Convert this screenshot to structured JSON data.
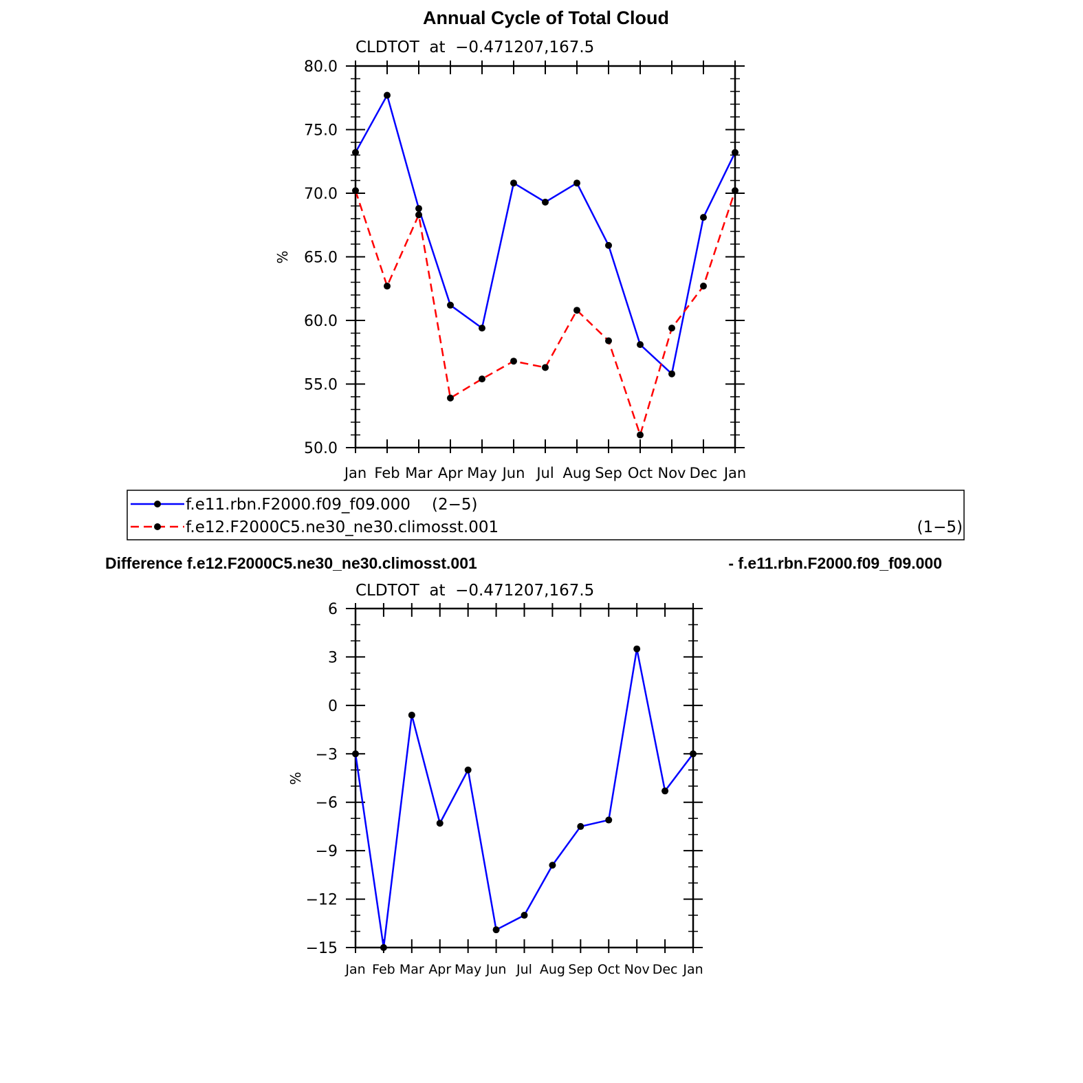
{
  "chart_data": [
    {
      "type": "line",
      "title": "Annual Cycle of Total Cloud",
      "subtitle": "CLDTOT  at  −0.471207,167.5",
      "xlabel": "",
      "ylabel": "%",
      "categories": [
        "Jan",
        "Feb",
        "Mar",
        "Apr",
        "May",
        "Jun",
        "Jul",
        "Aug",
        "Sep",
        "Oct",
        "Nov",
        "Dec",
        "Jan"
      ],
      "ylim": [
        50,
        80
      ],
      "yticks": [
        50,
        55,
        60,
        65,
        70,
        75,
        80
      ],
      "ytick_labels": [
        "50.0",
        "55.0",
        "60.0",
        "65.0",
        "70.0",
        "75.0",
        "80.0"
      ],
      "grid": false,
      "legend_position": "below",
      "series": [
        {
          "name": "f.e11.rbn.F2000.f09_f09.000",
          "legend_note": "(2−5)",
          "color": "#0000ff",
          "dash": "solid",
          "values": [
            73.2,
            77.7,
            68.8,
            61.2,
            59.4,
            70.8,
            69.3,
            70.8,
            65.9,
            58.1,
            55.8,
            68.1,
            73.2
          ]
        },
        {
          "name": "f.e12.F2000C5.ne30_ne30.climosst.001",
          "legend_note": "(1−5)",
          "color": "#ff0000",
          "dash": "dashed",
          "values": [
            70.2,
            62.7,
            68.3,
            53.9,
            55.4,
            56.8,
            56.3,
            60.8,
            58.4,
            51.0,
            59.4,
            62.7,
            70.2
          ]
        }
      ]
    },
    {
      "type": "line",
      "title": "Difference f.e12.F2000C5.ne30_ne30.climosst.001",
      "title_right": "- f.e11.rbn.F2000.f09_f09.000",
      "subtitle": "CLDTOT  at  −0.471207,167.5",
      "xlabel": "",
      "ylabel": "%",
      "categories": [
        "Jan",
        "Feb",
        "Mar",
        "Apr",
        "May",
        "Jun",
        "Jul",
        "Aug",
        "Sep",
        "Oct",
        "Nov",
        "Dec",
        "Jan"
      ],
      "ylim": [
        -15,
        6
      ],
      "yticks": [
        -15,
        -12,
        -9,
        -6,
        -3,
        0,
        3,
        6
      ],
      "ytick_labels": [
        "−15",
        "−12",
        "−9",
        "−6",
        "−3",
        "0",
        "3",
        "6"
      ],
      "grid": false,
      "series": [
        {
          "color": "#0000ff",
          "dash": "solid",
          "values": [
            -3.0,
            -15.0,
            -0.6,
            -7.3,
            -4.0,
            -13.9,
            -13.0,
            -9.9,
            -7.5,
            -7.1,
            3.5,
            -5.3,
            -3.0
          ]
        }
      ]
    }
  ]
}
